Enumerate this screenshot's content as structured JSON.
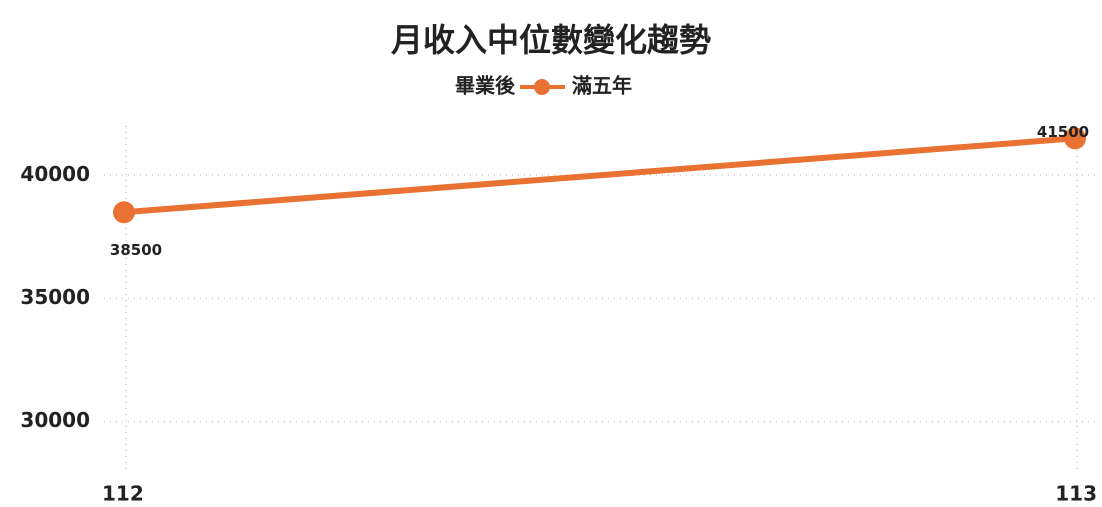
{
  "chart_data": {
    "type": "line",
    "title": "月收入中位數變化趨勢",
    "legend_title": "畢業後",
    "categories": [
      "112",
      "113"
    ],
    "series": [
      {
        "name": "滿五年",
        "color": "#e97132",
        "values": [
          38500,
          41500
        ]
      }
    ],
    "ylim": [
      28000,
      42000
    ],
    "yticks": [
      30000,
      35000,
      40000
    ],
    "grid": true,
    "legend": "top"
  }
}
